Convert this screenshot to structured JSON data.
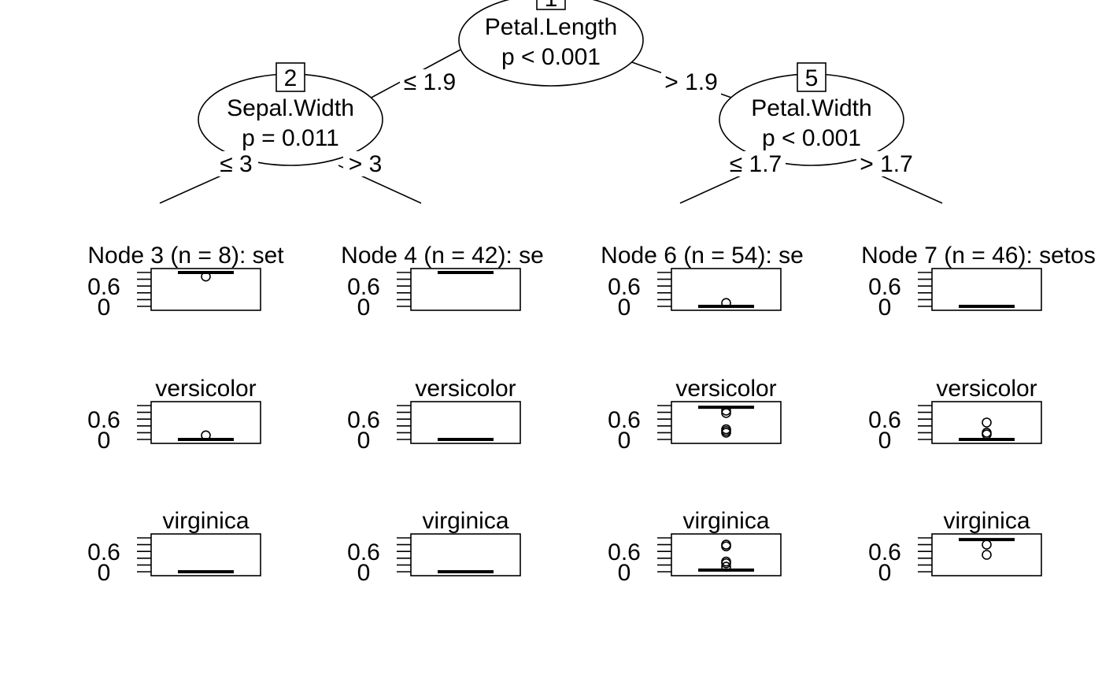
{
  "tree": {
    "inner_nodes": [
      {
        "id": "1",
        "variable": "Petal.Length",
        "pvalue": "p < 0.001"
      },
      {
        "id": "2",
        "variable": "Sepal.Width",
        "pvalue": "p = 0.011"
      },
      {
        "id": "5",
        "variable": "Petal.Width",
        "pvalue": "p < 0.001"
      }
    ],
    "edges": [
      {
        "from": "1",
        "to": "2",
        "label": "≤ 1.9"
      },
      {
        "from": "1",
        "to": "5",
        "label": "> 1.9"
      },
      {
        "from": "2",
        "to": "3",
        "label": "≤ 3"
      },
      {
        "from": "2",
        "to": "4",
        "label": "> 3"
      },
      {
        "from": "5",
        "to": "6",
        "label": "≤ 1.7"
      },
      {
        "from": "5",
        "to": "7",
        "label": "> 1.7"
      }
    ],
    "terminal_nodes": [
      {
        "id": "3",
        "title": "Node 3 (n = 8): set"
      },
      {
        "id": "4",
        "title": "Node 4 (n = 42): se"
      },
      {
        "id": "6",
        "title": "Node 6 (n = 54): se"
      },
      {
        "id": "7",
        "title": "Node 7 (n = 46): setos"
      }
    ],
    "class_labels": [
      "",
      "versicolor",
      "virginica"
    ],
    "y_tick_labels": [
      "0.6",
      "0"
    ]
  },
  "chart_data": {
    "type": "boxplot",
    "ylim": [
      0,
      1
    ],
    "yticks": [
      0,
      0.6
    ],
    "panels": [
      {
        "node": "3",
        "setosa": {
          "median": 1,
          "outliers": [
            0.88
          ]
        },
        "versicolor": {
          "median": 0,
          "outliers": [
            0.12
          ]
        },
        "virginica": {
          "median": 0,
          "outliers": []
        }
      },
      {
        "node": "4",
        "setosa": {
          "median": 1,
          "outliers": []
        },
        "versicolor": {
          "median": 0,
          "outliers": []
        },
        "virginica": {
          "median": 0,
          "outliers": []
        }
      },
      {
        "node": "6",
        "setosa": {
          "median": 0,
          "outliers": [
            0.1
          ]
        },
        "versicolor": {
          "median": 0.95,
          "outliers": [
            0.85,
            0.78,
            0.3,
            0.25,
            0.2
          ]
        },
        "virginica": {
          "median": 0.05,
          "outliers": [
            0.8,
            0.75,
            0.3,
            0.25,
            0.15
          ]
        }
      },
      {
        "node": "7",
        "setosa": {
          "median": 0,
          "outliers": []
        },
        "versicolor": {
          "median": 0,
          "outliers": [
            0.5,
            0.2,
            0.15
          ]
        },
        "virginica": {
          "median": 0.95,
          "outliers": [
            0.8,
            0.5
          ]
        }
      }
    ]
  }
}
